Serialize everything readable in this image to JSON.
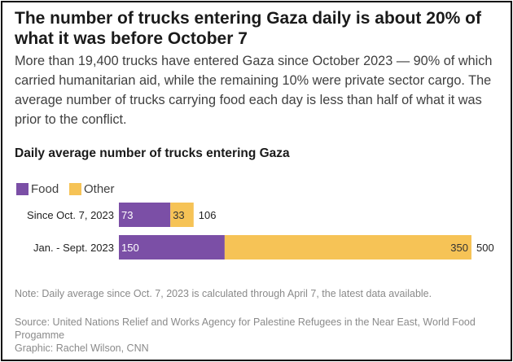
{
  "title": "The number of trucks entering Gaza daily is about 20% of what it was before October 7",
  "subtitle": "More than 19,400 trucks have entered Gaza since October 2023 — 90% of which carried humanitarian aid, while the remaining 10% were private sector cargo. The average number of trucks carrying food each day is less than half of what it was prior to the conflict.",
  "chart_heading": "Daily average number of trucks entering Gaza",
  "note": "Note: Daily average since Oct. 7, 2023 is calculated through April 7, the latest data available.",
  "source": "Source: United Nations Relief and Works Agency for Palestine Refugees in the Near East, World Food Progamme",
  "credit": "Graphic: Rachel Wilson, CNN",
  "colors": {
    "food": "#7b4fa6",
    "other": "#f6c356"
  },
  "chart_data": {
    "type": "bar",
    "orientation": "horizontal",
    "stacked": true,
    "categories": [
      "Since Oct. 7, 2023",
      "Jan. - Sept. 2023"
    ],
    "series": [
      {
        "name": "Food",
        "values": [
          73,
          150
        ]
      },
      {
        "name": "Other",
        "values": [
          33,
          350
        ]
      }
    ],
    "totals": [
      106,
      500
    ],
    "legend_position": "top-left",
    "grid": false
  }
}
